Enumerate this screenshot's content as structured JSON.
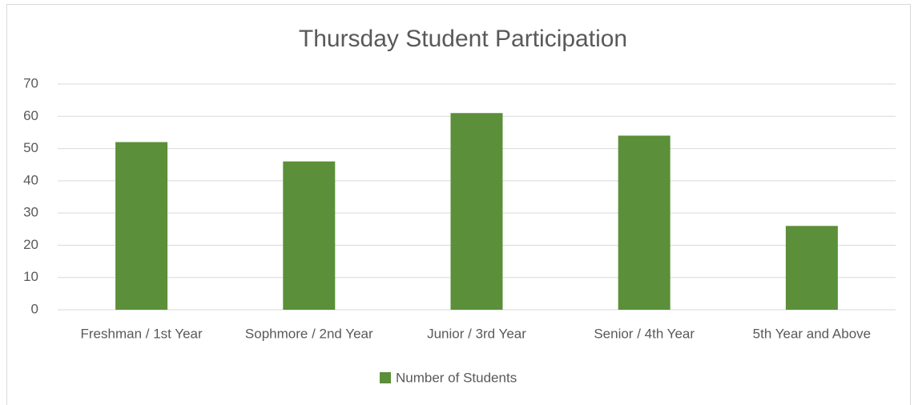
{
  "chart_data": {
    "type": "bar",
    "title": "Thursday Student Participation",
    "categories": [
      "Freshman / 1st Year",
      "Sophmore / 2nd Year",
      "Junior / 3rd Year",
      "Senior / 4th Year",
      "5th Year and Above"
    ],
    "series": [
      {
        "name": "Number of Students",
        "color": "#5b8f3a",
        "values": [
          52,
          46,
          61,
          54,
          26
        ]
      }
    ],
    "ylim": [
      0,
      70
    ],
    "yticks": [
      0,
      10,
      20,
      30,
      40,
      50,
      60,
      70
    ],
    "grid": true,
    "legend": "bottom"
  }
}
